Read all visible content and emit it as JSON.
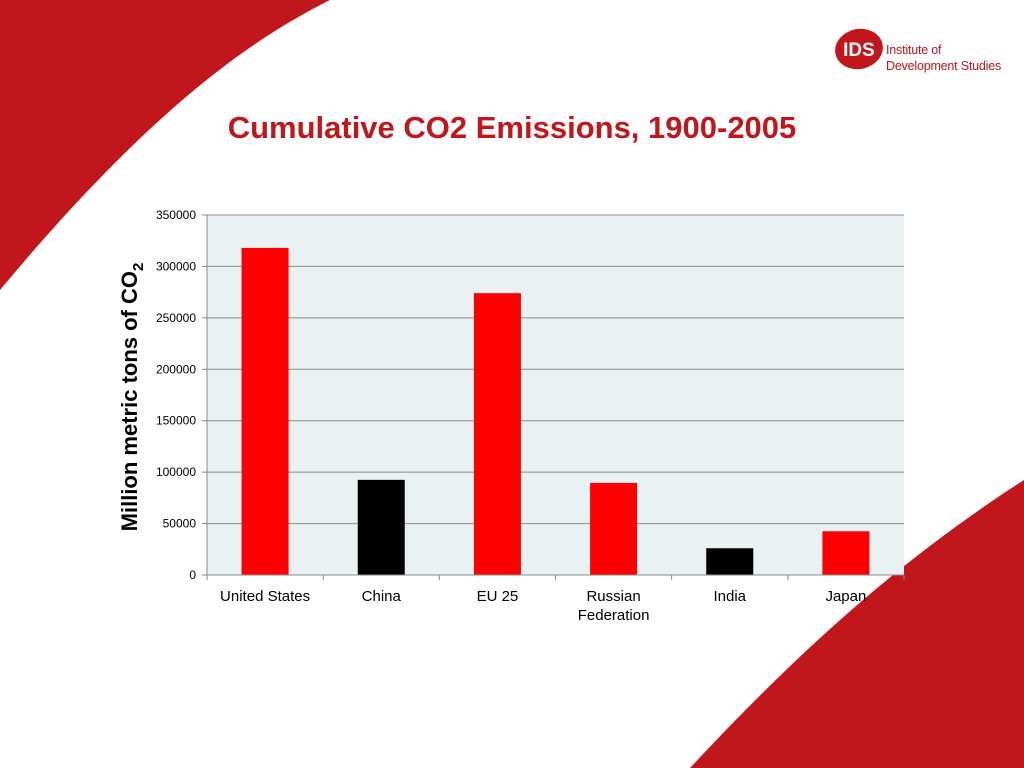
{
  "title": "Cumulative CO2 Emissions, 1900-2005",
  "logo": {
    "mark_text": "IDS",
    "line1": "Institute of",
    "line2": "Development Studies"
  },
  "colors": {
    "brand_red": "#c0161c",
    "bar_red": "#ff0000",
    "bar_black": "#000000",
    "plot_bg": "#e9f1f3"
  },
  "chart_data": {
    "type": "bar",
    "title": "",
    "xlabel": "",
    "ylabel": "Million metric tons of CO2",
    "ylabel_main": "Million metric tons of CO",
    "ylabel_sub": "2",
    "ylim": [
      0,
      350000
    ],
    "yticks": [
      0,
      50000,
      100000,
      150000,
      200000,
      250000,
      300000,
      350000
    ],
    "ytick_labels": [
      "0",
      "50000",
      "100000",
      "150000",
      "200000",
      "250000",
      "300000",
      "350000"
    ],
    "grid": true,
    "categories": [
      "United States",
      "China",
      "EU 25",
      "Russian Federation",
      "India",
      "Japan"
    ],
    "category_lines": [
      [
        "United States"
      ],
      [
        "China"
      ],
      [
        "EU 25"
      ],
      [
        "Russian",
        "Federation"
      ],
      [
        "India"
      ],
      [
        "Japan"
      ]
    ],
    "values": [
      318000,
      92500,
      274000,
      89500,
      26000,
      42500
    ],
    "bar_colors": [
      "#ff0000",
      "#000000",
      "#ff0000",
      "#ff0000",
      "#000000",
      "#ff0000"
    ]
  }
}
